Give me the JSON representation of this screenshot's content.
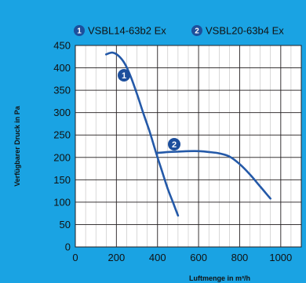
{
  "colors": {
    "background": "#1aa3e3",
    "plot": "#ffffff",
    "grid": "#231f20",
    "curve": "#2459a8",
    "badge": "#1d4f9c",
    "badge_text": "#ffffff",
    "text": "#111111"
  },
  "chart_data": {
    "type": "line",
    "xlabel": "Luftmenge in m³/h",
    "ylabel": "Verfügbarer Druck in Pa",
    "xlim": [
      0,
      1100
    ],
    "ylim": [
      0,
      450
    ],
    "xticks": [
      0,
      200,
      400,
      600,
      800,
      1000
    ],
    "yticks": [
      0,
      50,
      100,
      150,
      200,
      250,
      300,
      350,
      400,
      450
    ],
    "grid": true,
    "legend_position": "top",
    "series": [
      {
        "name": "VSBL14-63b2 Ex",
        "badge": "1",
        "x": [
          150,
          180,
          210,
          240,
          270,
          300,
          330,
          360,
          390,
          420,
          450,
          475,
          500
        ],
        "y": [
          430,
          434,
          427,
          410,
          380,
          342,
          300,
          260,
          215,
          172,
          130,
          100,
          70
        ]
      },
      {
        "name": "VSBL20-63b4 Ex",
        "badge": "2",
        "x": [
          400,
          450,
          500,
          550,
          600,
          650,
          700,
          750,
          800,
          850,
          900,
          950
        ],
        "y": [
          210,
          212,
          213,
          214,
          214,
          212,
          209,
          202,
          185,
          162,
          135,
          108
        ]
      }
    ]
  }
}
